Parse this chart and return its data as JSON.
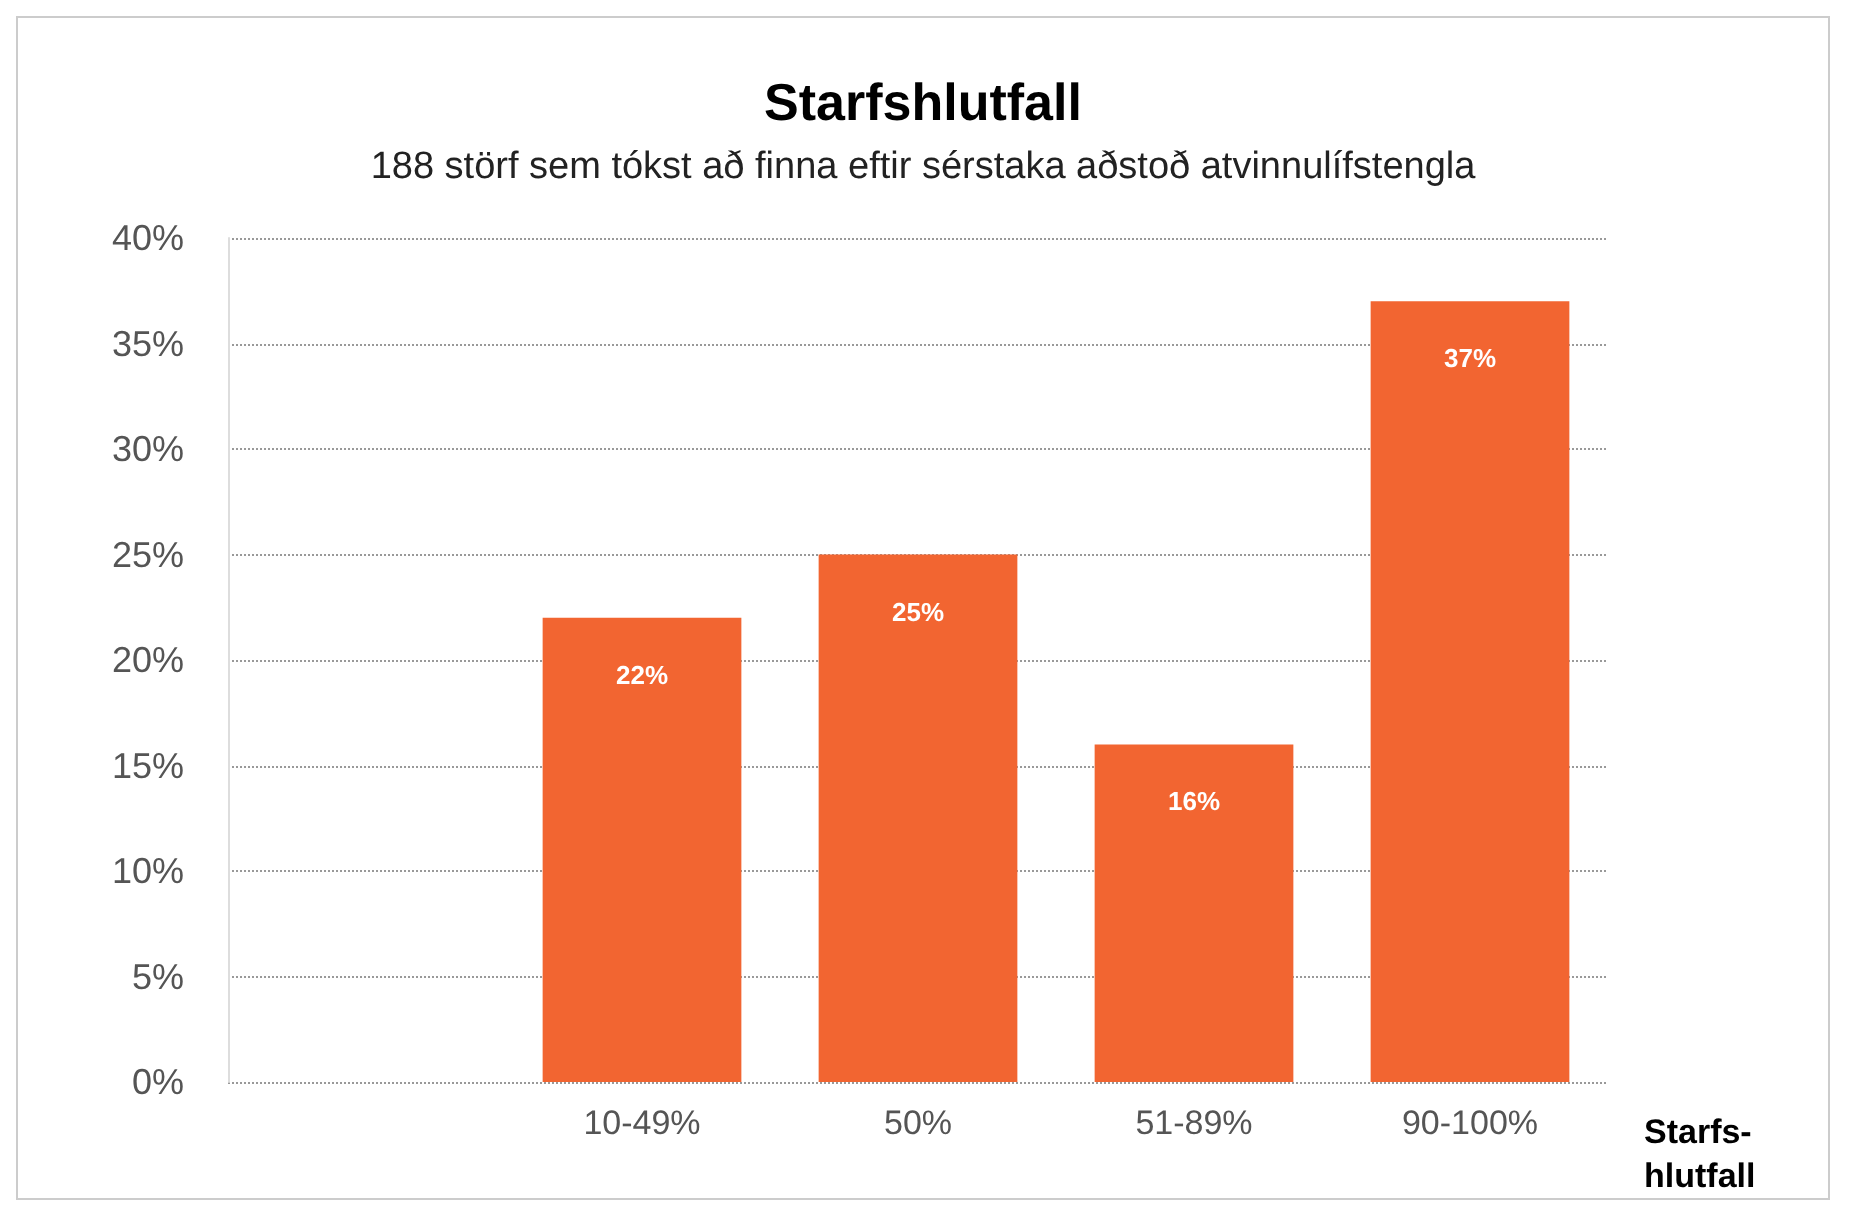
{
  "chart_data": {
    "type": "bar",
    "title": "Starfshlutfall",
    "subtitle": "188 störf sem tókst að finna eftir sérstaka aðstoð atvinnulífstengla",
    "xlabel": "Starfs-\nhlutfall",
    "categories": [
      null,
      "10-49%",
      "50%",
      "51-89%",
      "90-100%"
    ],
    "values": [
      null,
      22,
      25,
      16,
      37
    ],
    "color": "#f26531",
    "value_labels": [
      null,
      "22%",
      "25%",
      "16%",
      "37%"
    ],
    "ylim": [
      0,
      40
    ],
    "yticks": [
      {
        "value": 0,
        "label": "0%"
      },
      {
        "value": 5,
        "label": "5%"
      },
      {
        "value": 10,
        "label": "10%"
      },
      {
        "value": 15,
        "label": "15%"
      },
      {
        "value": 20,
        "label": "20%"
      },
      {
        "value": 25,
        "label": "25%"
      },
      {
        "value": 30,
        "label": "30%"
      },
      {
        "value": 35,
        "label": "35%"
      },
      {
        "value": 40,
        "label": "40%"
      }
    ],
    "grid": "y"
  }
}
